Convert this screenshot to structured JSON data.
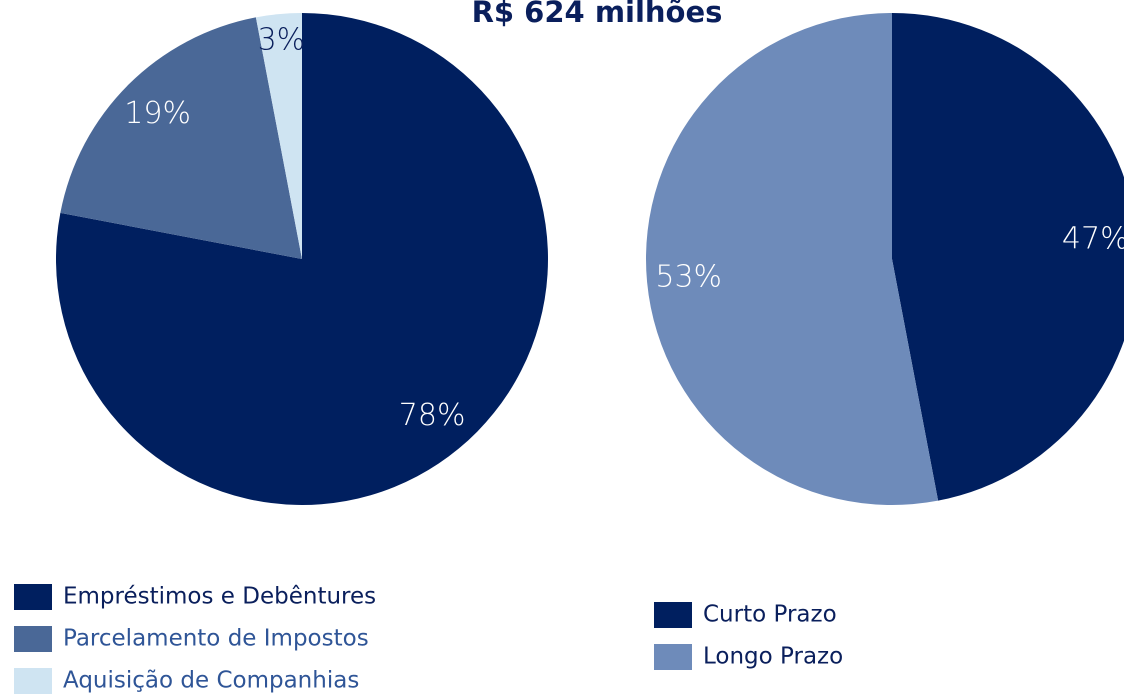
{
  "title": "R$ 624 milhões",
  "chart_data": [
    {
      "type": "pie",
      "categories": [
        "Empréstimos e Debêntures",
        "Parcelamento de Impostos",
        "Aquisição de Companhias"
      ],
      "values": [
        78,
        19,
        3
      ],
      "value_labels": [
        "78%",
        "19%",
        "3%"
      ],
      "colors": [
        "#001f5f",
        "#4a6897",
        "#cfe4f2"
      ]
    },
    {
      "type": "pie",
      "categories": [
        "Curto Prazo",
        "Longo Prazo"
      ],
      "values": [
        47,
        53
      ],
      "value_labels": [
        "47%",
        "53%"
      ],
      "colors": [
        "#001f5f",
        "#6e8bba"
      ]
    }
  ]
}
